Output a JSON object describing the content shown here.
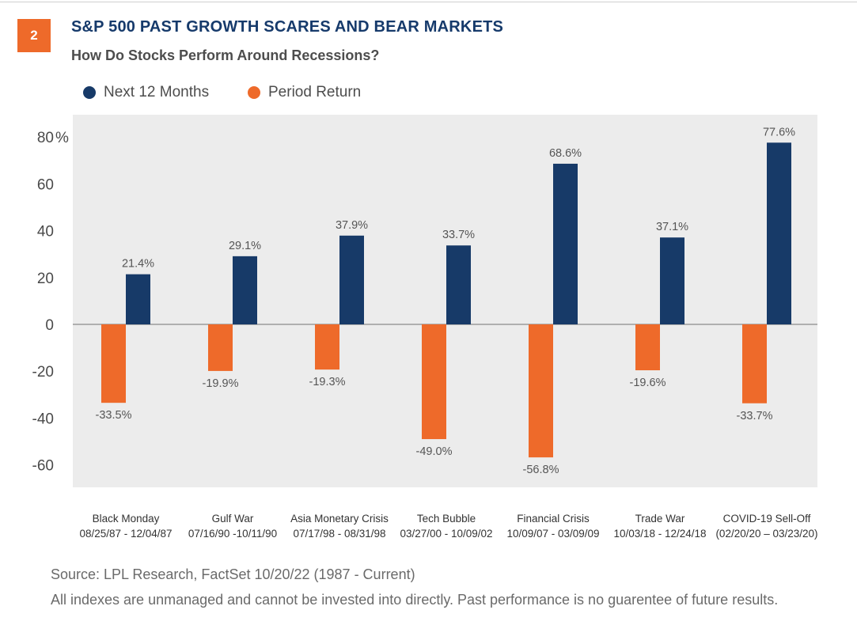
{
  "figure": {
    "number": "2",
    "title": "S&P 500 PAST GROWTH SCARES AND BEAR MARKETS",
    "subtitle": "How Do Stocks Perform Around Recessions?"
  },
  "colors": {
    "next12": "#173a68",
    "period": "#ee6a2a",
    "plot_bg": "#ececec",
    "zero_line": "#8a8a8a",
    "badge": "#ee6a2a"
  },
  "chart_data": {
    "type": "bar",
    "title": "S&P 500 PAST GROWTH SCARES AND BEAR MARKETS",
    "subtitle": "How Do Stocks Perform Around Recessions?",
    "categories": [
      {
        "name": "Black Monday",
        "dates": "08/25/87 - 12/04/87"
      },
      {
        "name": "Gulf War",
        "dates": "07/16/90 -10/11/90"
      },
      {
        "name": "Asia Monetary Crisis",
        "dates": "07/17/98 - 08/31/98"
      },
      {
        "name": "Tech Bubble",
        "dates": "03/27/00 - 10/09/02"
      },
      {
        "name": "Financial Crisis",
        "dates": "10/09/07 - 03/09/09"
      },
      {
        "name": "Trade War",
        "dates": "10/03/18 - 12/24/18"
      },
      {
        "name": "COVID-19 Sell-Off",
        "dates": "(02/20/20 – 03/23/20)"
      }
    ],
    "series": [
      {
        "name": "Period Return",
        "values": [
          -33.5,
          -19.9,
          -19.3,
          -49.0,
          -56.8,
          -19.6,
          -33.7
        ],
        "labels": [
          "-33.5%",
          "-19.9%",
          "-19.3%",
          "-49.0%",
          "-56.8%",
          "-19.6%",
          "-33.7%"
        ]
      },
      {
        "name": "Next 12 Months",
        "values": [
          21.4,
          29.1,
          37.9,
          33.7,
          68.6,
          37.1,
          77.6
        ],
        "labels": [
          "21.4%",
          "29.1%",
          "37.9%",
          "33.7%",
          "68.6%",
          "37.1%",
          "77.6%"
        ]
      }
    ],
    "yticks": [
      "80",
      "60",
      "40",
      "20",
      "0",
      "-20",
      "-40",
      "-60"
    ],
    "ytick_values": [
      80,
      60,
      40,
      20,
      0,
      -20,
      -40,
      -60
    ],
    "ytick_unit": "%",
    "ylim": [
      -70,
      88
    ],
    "grid": false,
    "legend_position": "top-left"
  },
  "legend": [
    {
      "name": "Next 12 Months"
    },
    {
      "name": "Period Return"
    }
  ],
  "footer": {
    "source": "Source: LPL Research, FactSet  10/20/22 (1987 - Current)",
    "disclaimer": "All indexes are unmanaged and cannot be invested into directly. Past performance is no guarentee of future results."
  }
}
